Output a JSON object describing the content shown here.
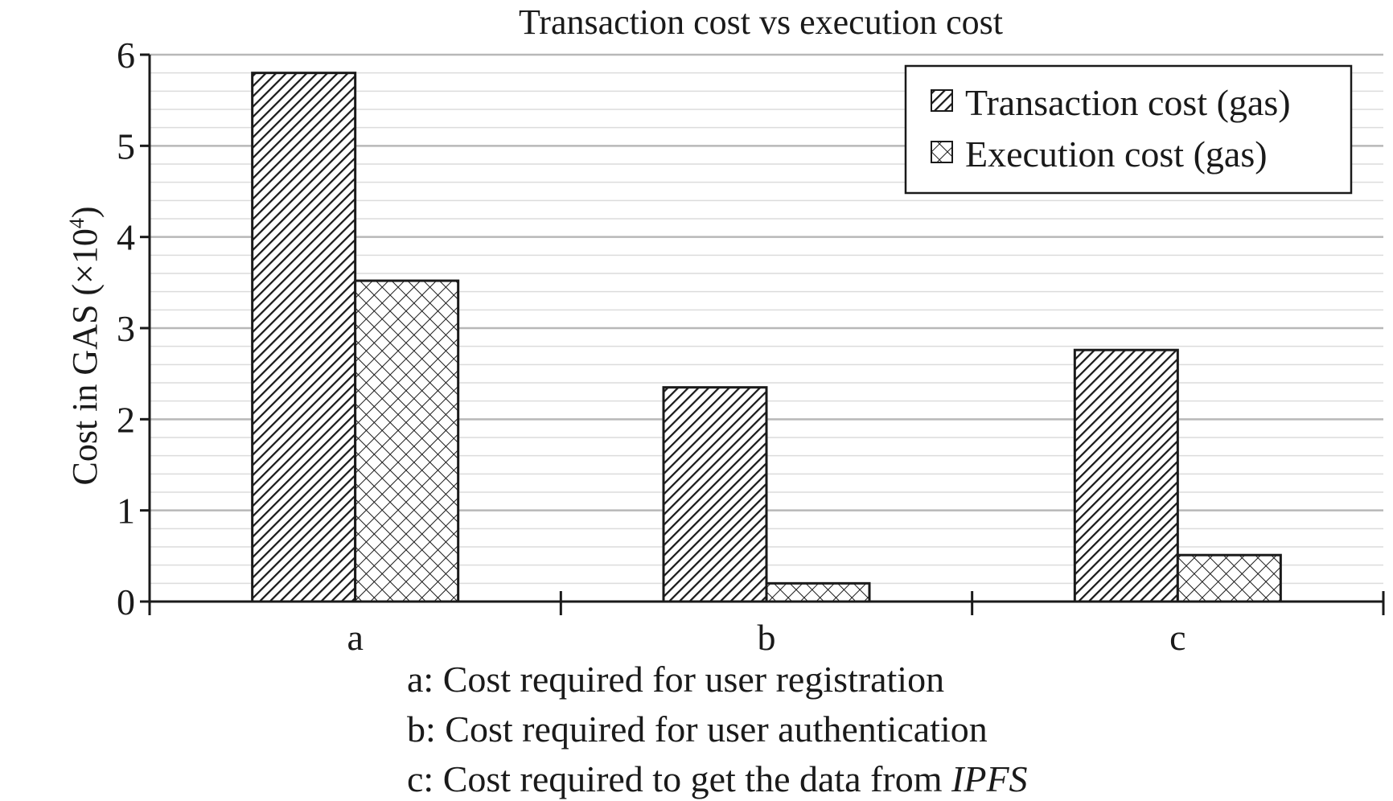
{
  "chart_data": {
    "type": "bar",
    "title": "Transaction cost vs execution cost",
    "xlabel": "",
    "ylabel": "Cost in GAS (×10",
    "ylabel_superscript": "4",
    "ylabel_suffix": ")",
    "categories": [
      "a",
      "b",
      "c"
    ],
    "series": [
      {
        "name": "Transaction cost (gas)",
        "values": [
          5.8,
          2.35,
          2.76
        ],
        "pattern": "diagonal-hatch"
      },
      {
        "name": "Execution cost (gas)",
        "values": [
          3.52,
          0.2,
          0.51
        ],
        "pattern": "cross-hatch"
      }
    ],
    "ylim": [
      0,
      6
    ],
    "yticks": [
      "0",
      "1",
      "2",
      "3",
      "4",
      "5",
      "6"
    ],
    "grid": true,
    "legend_position": "top-right",
    "notes": [
      {
        "prefix": "a: Cost required for user registration",
        "italic": ""
      },
      {
        "prefix": "b: Cost required for user authentication",
        "italic": ""
      },
      {
        "prefix": "c: Cost required to get the data from ",
        "italic": "IPFS"
      }
    ],
    "colors": {
      "bar_fill": "#ffffff",
      "bar_stroke": "#1a1a1a",
      "grid_major": "#b8b8b8",
      "grid_minor": "#dcdcdc",
      "axis": "#1a1a1a"
    }
  }
}
